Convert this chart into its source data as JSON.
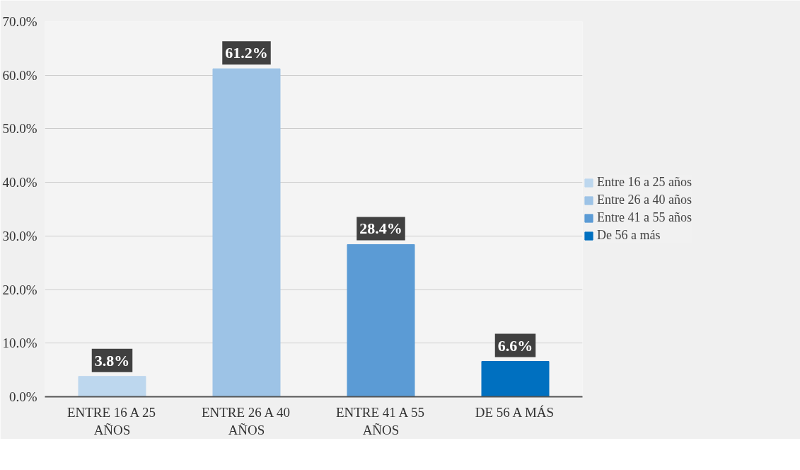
{
  "chart_data": {
    "type": "bar",
    "categories": [
      "ENTRE 16 A 25 AÑOS",
      "ENTRE 26 A 40 AÑOS",
      "ENTRE 41 A 55 AÑOS",
      "DE 56 A MÁS"
    ],
    "series": [
      {
        "name": "Entre 16 a 25 años",
        "color": "#bdd7ee",
        "values": [
          3.8,
          null,
          null,
          null
        ],
        "value_labels": [
          "3.8%",
          null,
          null,
          null
        ]
      },
      {
        "name": "Entre 26 a 40 años",
        "color": "#9dc3e6",
        "values": [
          null,
          61.2,
          null,
          null
        ],
        "value_labels": [
          null,
          "61.2%",
          null,
          null
        ]
      },
      {
        "name": "Entre 41 a 55 años",
        "color": "#5b9bd5",
        "values": [
          null,
          null,
          28.4,
          null
        ],
        "value_labels": [
          null,
          null,
          "28.4%",
          null
        ]
      },
      {
        "name": "De 56 a más",
        "color": "#0070c0",
        "values": [
          null,
          null,
          null,
          6.6
        ],
        "value_labels": [
          null,
          null,
          null,
          "6.6%"
        ]
      }
    ],
    "ylim": [
      0,
      70
    ],
    "yticks": [
      {
        "value": 0,
        "label": "0.0%"
      },
      {
        "value": 10,
        "label": "10.0%"
      },
      {
        "value": 20,
        "label": "20.0%"
      },
      {
        "value": 30,
        "label": "30.0%"
      },
      {
        "value": 40,
        "label": "40.0%"
      },
      {
        "value": 50,
        "label": "50.0%"
      },
      {
        "value": 60,
        "label": "60.0%"
      },
      {
        "value": 70,
        "label": "70.0%"
      }
    ],
    "grid": "y",
    "legend": "right"
  }
}
